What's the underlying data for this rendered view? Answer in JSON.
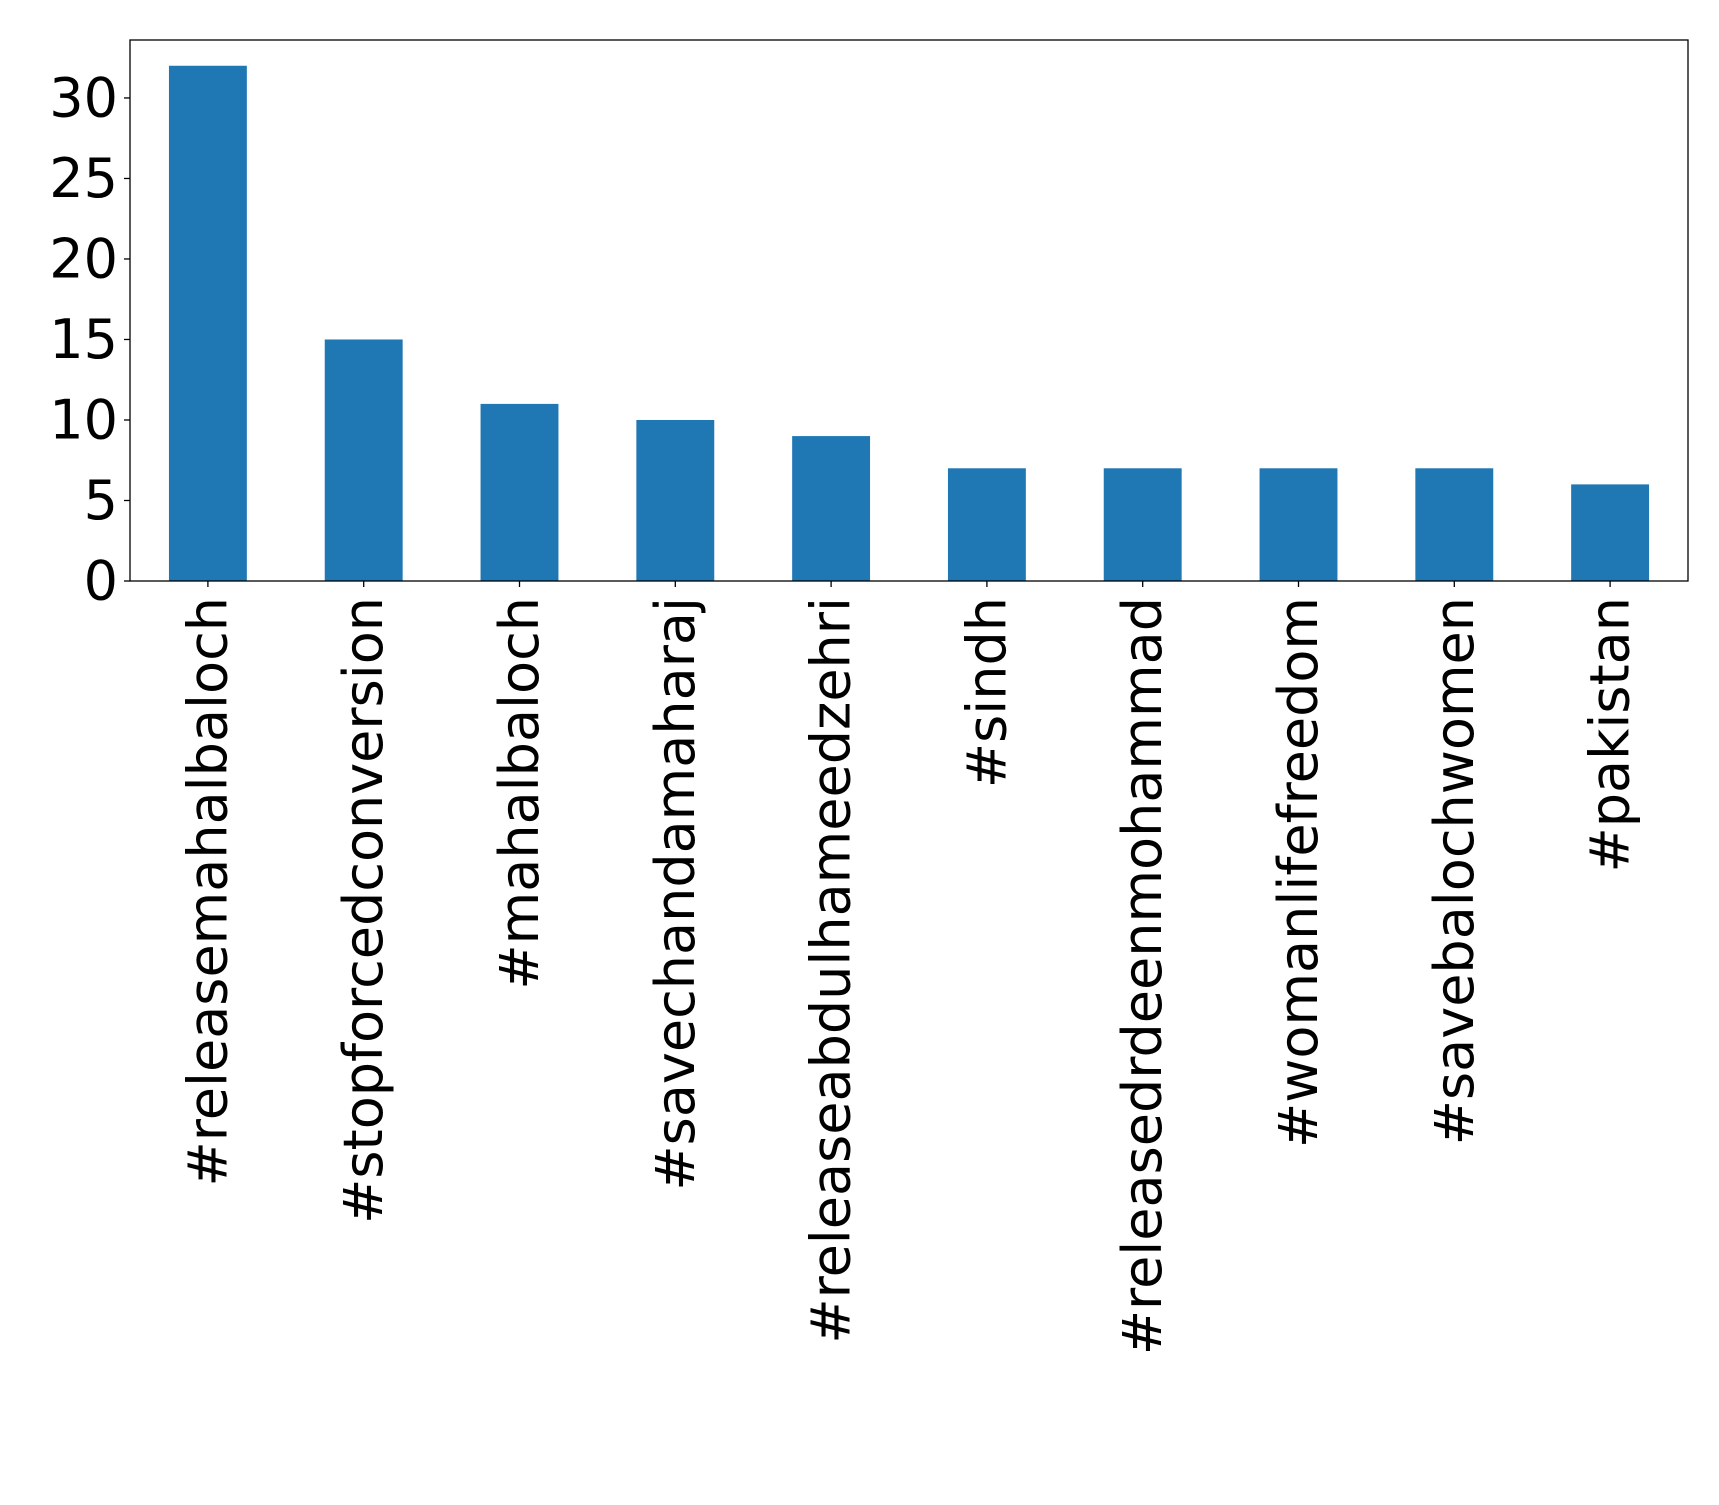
{
  "chart_data": {
    "type": "bar",
    "categories": [
      "#releasemahalbaloch",
      "#stopforcedconversion",
      "#mahalbaloch",
      "#savechandamaharaj",
      "#releaseabdulhameedzehri",
      "#sindh",
      "#releasedrdeenmohammad",
      "#womanlifefreedom",
      "#savebalochwomen",
      "#pakistan"
    ],
    "values": [
      32,
      15,
      11,
      10,
      9,
      7,
      7,
      7,
      7,
      6
    ],
    "title": "",
    "xlabel": "",
    "ylabel": "",
    "ylim": [
      0,
      33.6
    ],
    "yticks": [
      0,
      5,
      10,
      15,
      20,
      25,
      30
    ],
    "grid": false,
    "bar_color": "#1f77b4"
  }
}
